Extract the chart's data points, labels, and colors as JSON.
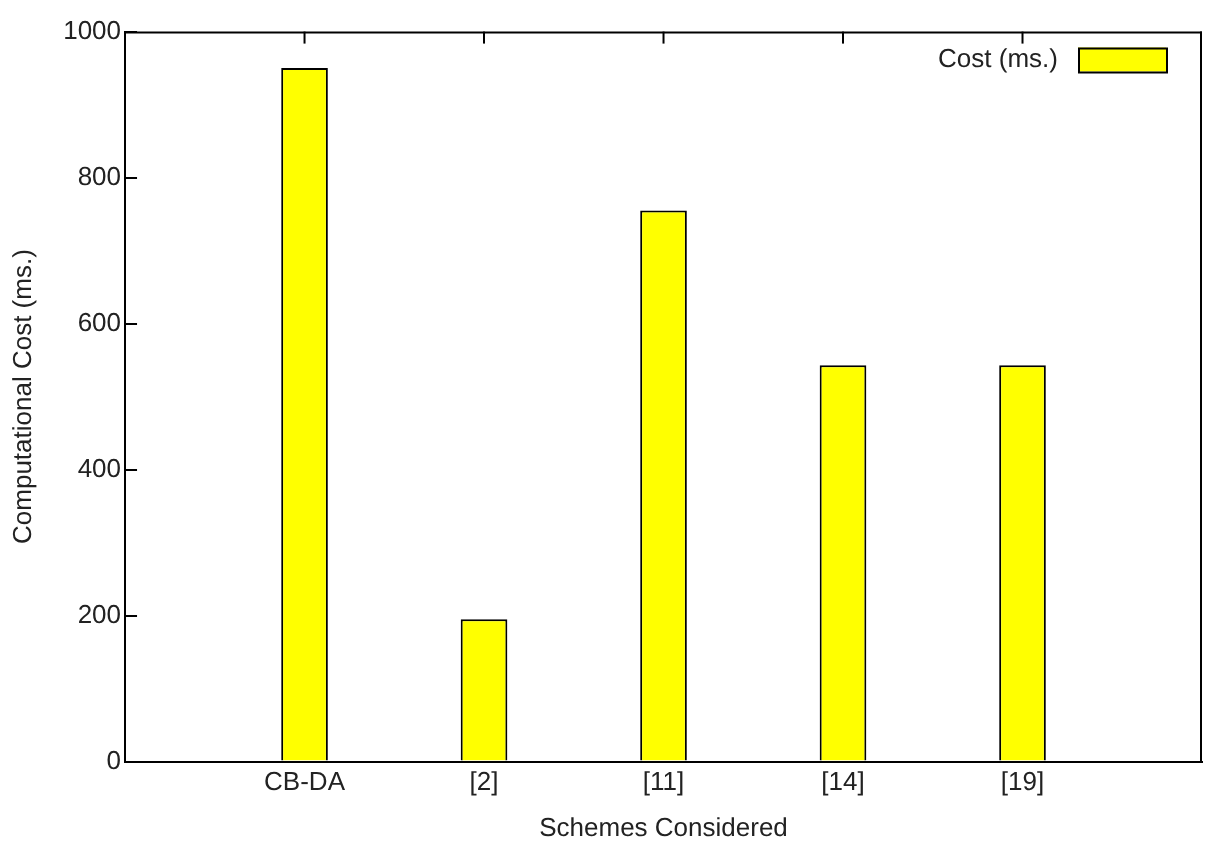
{
  "chart_data": {
    "type": "bar",
    "xlabel": "Schemes Considered",
    "ylabel": "Computational Cost (ms.)",
    "categories": [
      "CB-DA",
      "[2]",
      "[11]",
      "[14]",
      "[19]"
    ],
    "series": [
      {
        "name": "Cost (ms.)",
        "color": "#ffff00",
        "values": [
          950,
          195,
          755,
          543,
          543
        ]
      }
    ],
    "ylim": [
      0,
      1000
    ],
    "yticks": [
      0,
      200,
      400,
      600,
      800,
      1000
    ],
    "grid": false,
    "legend": "top right"
  }
}
